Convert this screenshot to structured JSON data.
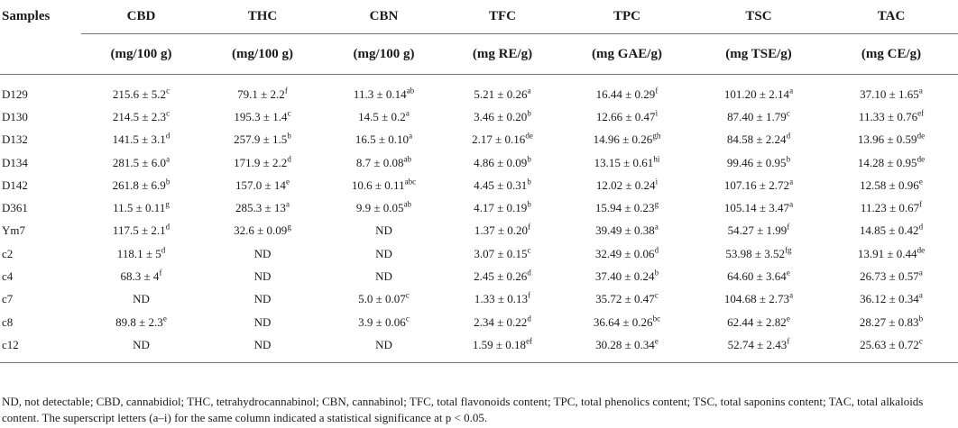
{
  "table": {
    "headers": [
      "Samples",
      "CBD",
      "THC",
      "CBN",
      "TFC",
      "TPC",
      "TSC",
      "TAC"
    ],
    "units": [
      "",
      "(mg/100 g)",
      "(mg/100 g)",
      "(mg/100 g)",
      "(mg RE/g)",
      "(mg GAE/g)",
      "(mg TSE/g)",
      "(mg CE/g)"
    ],
    "rows": [
      {
        "name": "D129",
        "cells": [
          [
            "215.6 ± 5.2",
            "c"
          ],
          [
            "79.1 ± 2.2",
            "f"
          ],
          [
            "11.3 ± 0.14",
            "ab"
          ],
          [
            "5.21 ± 0.26",
            "a"
          ],
          [
            "16.44 ± 0.29",
            "f"
          ],
          [
            "101.20 ± 2.14",
            "a"
          ],
          [
            "37.10 ± 1.65",
            "a"
          ]
        ]
      },
      {
        "name": "D130",
        "cells": [
          [
            "214.5 ± 2.3",
            "c"
          ],
          [
            "195.3 ± 1.4",
            "c"
          ],
          [
            "14.5 ± 0.2",
            "a"
          ],
          [
            "3.46 ± 0.20",
            "b"
          ],
          [
            "12.66 ± 0.47",
            "i"
          ],
          [
            "87.40 ± 1.79",
            "c"
          ],
          [
            "11.33 ± 0.76",
            "ef"
          ]
        ]
      },
      {
        "name": "D132",
        "cells": [
          [
            "141.5 ± 3.1",
            "d"
          ],
          [
            "257.9 ± 1.5",
            "b"
          ],
          [
            "16.5 ± 0.10",
            "a"
          ],
          [
            "2.17 ± 0.16",
            "de"
          ],
          [
            "14.96 ± 0.26",
            "gh"
          ],
          [
            "84.58 ± 2.24",
            "d"
          ],
          [
            "13.96 ± 0.59",
            "de"
          ]
        ]
      },
      {
        "name": "D134",
        "cells": [
          [
            "281.5 ± 6.0",
            "a"
          ],
          [
            "171.9 ± 2.2",
            "d"
          ],
          [
            "8.7 ± 0.08",
            "ab"
          ],
          [
            "4.86 ± 0.09",
            "b"
          ],
          [
            "13.15 ± 0.61",
            "hi"
          ],
          [
            "99.46 ± 0.95",
            "b"
          ],
          [
            "14.28 ± 0.95",
            "de"
          ]
        ]
      },
      {
        "name": "D142",
        "cells": [
          [
            "261.8 ± 6.9",
            "b"
          ],
          [
            "157.0 ± 14",
            "e"
          ],
          [
            "10.6 ± 0.11",
            "abc"
          ],
          [
            "4.45 ± 0.31",
            "b"
          ],
          [
            "12.02 ± 0.24",
            "i"
          ],
          [
            "107.16 ± 2.72",
            "a"
          ],
          [
            "12.58 ± 0.96",
            "e"
          ]
        ]
      },
      {
        "name": "D361",
        "cells": [
          [
            "11.5 ± 0.11",
            "g"
          ],
          [
            "285.3 ± 13",
            "a"
          ],
          [
            "9.9 ± 0.05",
            "ab"
          ],
          [
            "4.17 ± 0.19",
            "b"
          ],
          [
            "15.94 ± 0.23",
            "g"
          ],
          [
            "105.14 ± 3.47",
            "a"
          ],
          [
            "11.23 ± 0.67",
            "f"
          ]
        ]
      },
      {
        "name": "Ym7",
        "cells": [
          [
            "117.5 ± 2.1",
            "d"
          ],
          [
            "32.6 ± 0.09",
            "g"
          ],
          [
            "ND",
            ""
          ],
          [
            "1.37 ± 0.20",
            "f"
          ],
          [
            "39.49 ± 0.38",
            "a"
          ],
          [
            "54.27 ± 1.99",
            "f"
          ],
          [
            "14.85 ± 0.42",
            "d"
          ]
        ]
      },
      {
        "name": "c2",
        "cells": [
          [
            "118.1 ± 5",
            "d"
          ],
          [
            "ND",
            ""
          ],
          [
            "ND",
            ""
          ],
          [
            "3.07 ± 0.15",
            "c"
          ],
          [
            "32.49 ± 0.06",
            "d"
          ],
          [
            "53.98 ± 3.52",
            "fg"
          ],
          [
            "13.91 ± 0.44",
            "de"
          ]
        ]
      },
      {
        "name": "c4",
        "cells": [
          [
            "68.3 ± 4",
            "f"
          ],
          [
            "ND",
            ""
          ],
          [
            "ND",
            ""
          ],
          [
            "2.45 ± 0.26",
            "d"
          ],
          [
            "37.40 ± 0.24",
            "b"
          ],
          [
            "64.60 ± 3.64",
            "e"
          ],
          [
            "26.73 ± 0.57",
            "a"
          ]
        ]
      },
      {
        "name": "c7",
        "cells": [
          [
            "ND",
            ""
          ],
          [
            "ND",
            ""
          ],
          [
            "5.0 ± 0.07",
            "c"
          ],
          [
            "1.33 ± 0.13",
            "f"
          ],
          [
            "35.72 ± 0.47",
            "c"
          ],
          [
            "104.68 ± 2.73",
            "a"
          ],
          [
            "36.12 ± 0.34",
            "a"
          ]
        ]
      },
      {
        "name": "c8",
        "cells": [
          [
            "89.8 ± 2.3",
            "e"
          ],
          [
            "ND",
            ""
          ],
          [
            "3.9 ± 0.06",
            "c"
          ],
          [
            "2.34 ± 0.22",
            "d"
          ],
          [
            "36.64 ± 0.26",
            "bc"
          ],
          [
            "62.44 ± 2.82",
            "e"
          ],
          [
            "28.27 ± 0.83",
            "b"
          ]
        ]
      },
      {
        "name": "c12",
        "cells": [
          [
            "ND",
            ""
          ],
          [
            "ND",
            ""
          ],
          [
            "ND",
            ""
          ],
          [
            "1.59 ± 0.18",
            "ef"
          ],
          [
            "30.28 ± 0.34",
            "e"
          ],
          [
            "52.74 ± 2.43",
            "f"
          ],
          [
            "25.63 ± 0.72",
            "c"
          ]
        ]
      }
    ]
  },
  "footnote": "ND, not detectable; CBD, cannabidiol; THC, tetrahydrocannabinol; CBN, cannabinol; TFC, total flavonoids content; TPC, total phenolics content; TSC, total saponins content; TAC, total alkaloids content. The superscript letters (a–i) for the same column indicated a statistical significance at p < 0.05."
}
